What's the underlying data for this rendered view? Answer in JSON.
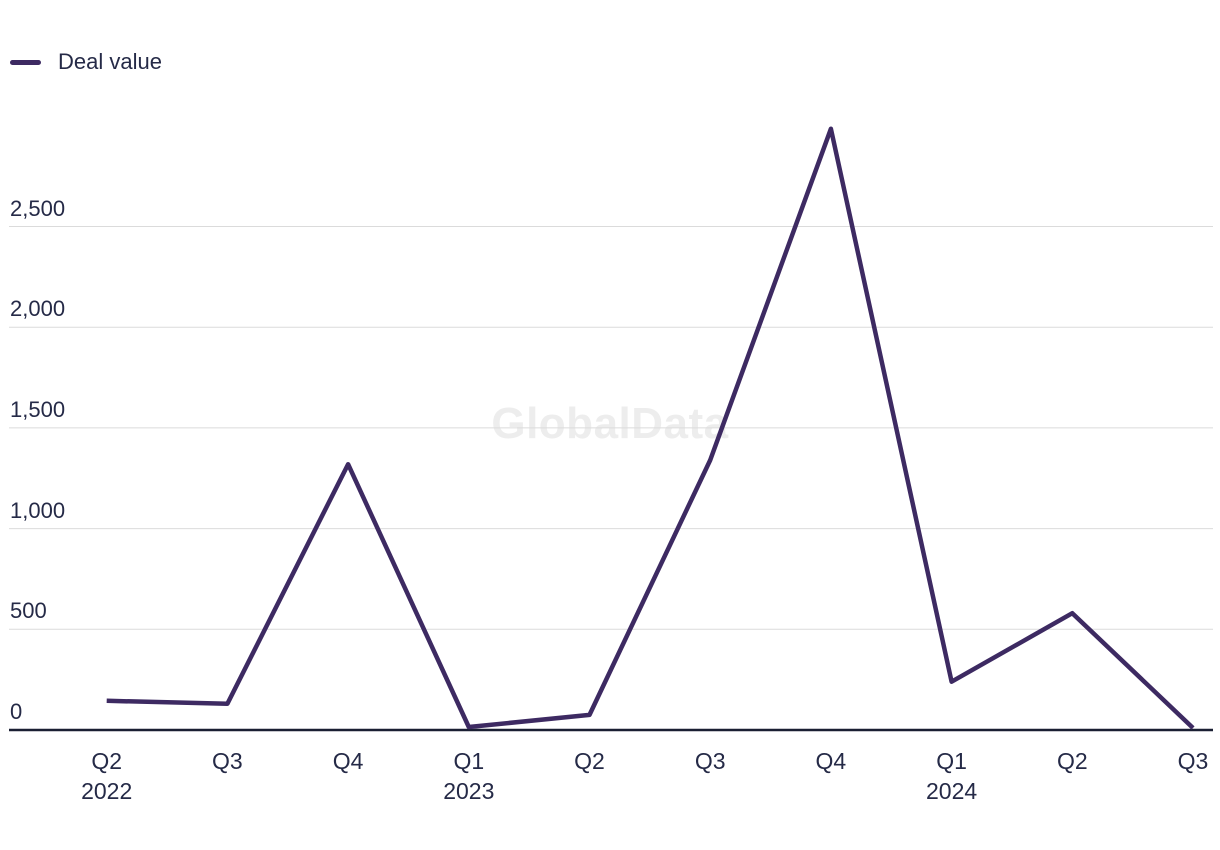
{
  "watermark": "GlobalData",
  "legend": {
    "position": "top-left",
    "items": [
      {
        "label": "Deal value",
        "swatch_color": "#3D2A62"
      }
    ]
  },
  "colors": {
    "line": "#3D2A62",
    "axis": "#1A1F33",
    "gridline": "#DBDBDB",
    "tick_text": "#252A47",
    "watermark_text": "#EDEDED",
    "background": "#FFFFFF"
  },
  "chart_data": {
    "type": "line",
    "title": "",
    "legend": [
      "Deal value"
    ],
    "legend_position": "top-left",
    "grid": "horizontal",
    "categories": [
      "Q2 2022",
      "Q3 2022",
      "Q4 2022",
      "Q1 2023",
      "Q2 2023",
      "Q3 2023",
      "Q4 2023",
      "Q1 2024",
      "Q2 2024",
      "Q3 2024"
    ],
    "x_axis": {
      "quarter_labels": [
        "Q2",
        "Q3",
        "Q4",
        "Q1",
        "Q2",
        "Q3",
        "Q4",
        "Q1",
        "Q2",
        "Q3"
      ],
      "year_labels": [
        {
          "index": 0,
          "label": "2022"
        },
        {
          "index": 3,
          "label": "2023"
        },
        {
          "index": 7,
          "label": "2024"
        }
      ]
    },
    "y_axis": {
      "tick_values": [
        0,
        500,
        1000,
        1500,
        2000,
        2500
      ],
      "tick_labels": [
        "0",
        "500",
        "1,000",
        "1,500",
        "2,000",
        "2,500"
      ]
    },
    "ylim": [
      0,
      3000
    ],
    "series": [
      {
        "name": "Deal value",
        "color": "#3D2A62",
        "values": [
          145,
          130,
          1320,
          15,
          75,
          1340,
          2985,
          240,
          580,
          10
        ]
      }
    ]
  }
}
